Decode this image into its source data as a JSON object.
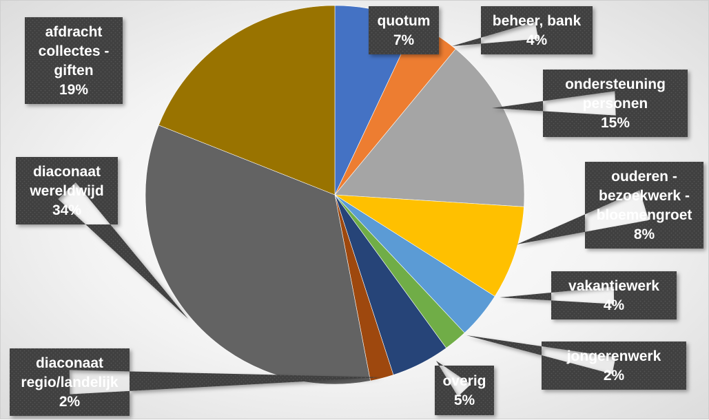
{
  "chart_data": {
    "type": "pie",
    "title": "",
    "slices": [
      {
        "name": "quotum",
        "lines": [
          "quotum"
        ],
        "value": 7,
        "label": "7%",
        "color": "#4472C4"
      },
      {
        "name": "beheer, bank",
        "lines": [
          "beheer, bank"
        ],
        "value": 4,
        "label": "4%",
        "color": "#ED7D31"
      },
      {
        "name": "ondersteuning personen",
        "lines": [
          "ondersteuning",
          "personen"
        ],
        "value": 15,
        "label": "15%",
        "color": "#A5A5A5"
      },
      {
        "name": "ouderen - bezoekwerk - bloemengroet",
        "lines": [
          "ouderen -",
          "bezoekwerk -",
          "bloemengroet"
        ],
        "value": 8,
        "label": "8%",
        "color": "#FFC000"
      },
      {
        "name": "vakantiewerk",
        "lines": [
          "vakantiewerk"
        ],
        "value": 4,
        "label": "4%",
        "color": "#5B9BD5"
      },
      {
        "name": "jongerenwerk",
        "lines": [
          "jongerenwerk"
        ],
        "value": 2,
        "label": "2%",
        "color": "#70AD47"
      },
      {
        "name": "overig",
        "lines": [
          "overig"
        ],
        "value": 5,
        "label": "5%",
        "color": "#264478"
      },
      {
        "name": "diaconaat regio/landelijk",
        "lines": [
          "diaconaat",
          "regio/landelijk"
        ],
        "value": 2,
        "label": "2%",
        "color": "#9E480E"
      },
      {
        "name": "diaconaat wereldwijd",
        "lines": [
          "diaconaat",
          "wereldwijd"
        ],
        "value": 34,
        "label": "34%",
        "color": "#636363"
      },
      {
        "name": "afdracht collectes - giften",
        "lines": [
          "afdracht",
          "collectes -",
          "giften"
        ],
        "value": 19,
        "label": "19%",
        "color": "#997300"
      }
    ],
    "legend": "none",
    "label_style": "callouts"
  }
}
